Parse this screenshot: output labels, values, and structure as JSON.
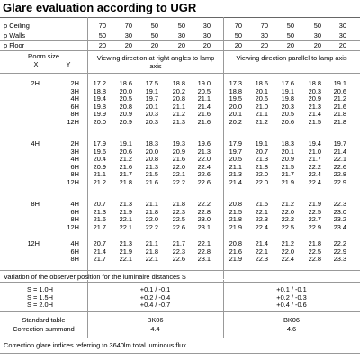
{
  "title": "Glare evaluation according to UGR",
  "reflectances": [
    {
      "label": "ρ Ceiling",
      "values": [
        "70",
        "70",
        "50",
        "50",
        "30",
        "70",
        "70",
        "50",
        "50",
        "30"
      ]
    },
    {
      "label": "ρ Walls",
      "values": [
        "50",
        "30",
        "50",
        "30",
        "30",
        "50",
        "30",
        "50",
        "30",
        "30"
      ]
    },
    {
      "label": "ρ Floor",
      "values": [
        "20",
        "20",
        "20",
        "20",
        "20",
        "20",
        "20",
        "20",
        "20",
        "20"
      ]
    }
  ],
  "room_size_header": {
    "title": "Room size",
    "x": "X",
    "y": "Y"
  },
  "view_right": "Viewing direction at right angles to lamp axis",
  "view_parallel": "Viewing direction parallel to lamp axis",
  "groups": [
    {
      "rows": [
        {
          "x": "2H",
          "y": "2H",
          "v": [
            "17.2",
            "18.6",
            "17.5",
            "18.8",
            "19.0",
            "17.3",
            "18.6",
            "17.6",
            "18.8",
            "19.1"
          ]
        },
        {
          "x": "",
          "y": "3H",
          "v": [
            "18.8",
            "20.0",
            "19.1",
            "20.2",
            "20.5",
            "18.8",
            "20.1",
            "19.1",
            "20.3",
            "20.6"
          ]
        },
        {
          "x": "",
          "y": "4H",
          "v": [
            "19.4",
            "20.5",
            "19.7",
            "20.8",
            "21.1",
            "19.5",
            "20.6",
            "19.8",
            "20.9",
            "21.2"
          ]
        },
        {
          "x": "",
          "y": "6H",
          "v": [
            "19.8",
            "20.8",
            "20.1",
            "21.1",
            "21.4",
            "20.0",
            "21.0",
            "20.3",
            "21.3",
            "21.6"
          ]
        },
        {
          "x": "",
          "y": "8H",
          "v": [
            "19.9",
            "20.9",
            "20.3",
            "21.2",
            "21.6",
            "20.1",
            "21.1",
            "20.5",
            "21.4",
            "21.8"
          ]
        },
        {
          "x": "",
          "y": "12H",
          "v": [
            "20.0",
            "20.9",
            "20.3",
            "21.3",
            "21.6",
            "20.2",
            "21.2",
            "20.6",
            "21.5",
            "21.8"
          ]
        }
      ]
    },
    {
      "rows": [
        {
          "x": "4H",
          "y": "2H",
          "v": [
            "17.9",
            "19.1",
            "18.3",
            "19.3",
            "19.6",
            "17.9",
            "19.1",
            "18.3",
            "19.4",
            "19.7"
          ]
        },
        {
          "x": "",
          "y": "3H",
          "v": [
            "19.6",
            "20.6",
            "20.0",
            "20.9",
            "21.3",
            "19.7",
            "20.7",
            "20.1",
            "21.0",
            "21.4"
          ]
        },
        {
          "x": "",
          "y": "4H",
          "v": [
            "20.4",
            "21.2",
            "20.8",
            "21.6",
            "22.0",
            "20.5",
            "21.3",
            "20.9",
            "21.7",
            "22.1"
          ]
        },
        {
          "x": "",
          "y": "6H",
          "v": [
            "20.9",
            "21.6",
            "21.3",
            "22.0",
            "22.4",
            "21.1",
            "21.8",
            "21.5",
            "22.2",
            "22.6"
          ]
        },
        {
          "x": "",
          "y": "8H",
          "v": [
            "21.1",
            "21.7",
            "21.5",
            "22.1",
            "22.6",
            "21.3",
            "22.0",
            "21.7",
            "22.4",
            "22.8"
          ]
        },
        {
          "x": "",
          "y": "12H",
          "v": [
            "21.2",
            "21.8",
            "21.6",
            "22.2",
            "22.6",
            "21.4",
            "22.0",
            "21.9",
            "22.4",
            "22.9"
          ]
        }
      ]
    },
    {
      "rows": [
        {
          "x": "8H",
          "y": "4H",
          "v": [
            "20.7",
            "21.3",
            "21.1",
            "21.8",
            "22.2",
            "20.8",
            "21.5",
            "21.2",
            "21.9",
            "22.3"
          ]
        },
        {
          "x": "",
          "y": "6H",
          "v": [
            "21.3",
            "21.9",
            "21.8",
            "22.3",
            "22.8",
            "21.5",
            "22.1",
            "22.0",
            "22.5",
            "23.0"
          ]
        },
        {
          "x": "",
          "y": "8H",
          "v": [
            "21.6",
            "22.1",
            "22.0",
            "22.5",
            "23.0",
            "21.8",
            "22.3",
            "22.2",
            "22.7",
            "23.2"
          ]
        },
        {
          "x": "",
          "y": "12H",
          "v": [
            "21.7",
            "22.1",
            "22.2",
            "22.6",
            "23.1",
            "21.9",
            "22.4",
            "22.5",
            "22.9",
            "23.4"
          ]
        }
      ]
    },
    {
      "rows": [
        {
          "x": "12H",
          "y": "4H",
          "v": [
            "20.7",
            "21.3",
            "21.1",
            "21.7",
            "22.1",
            "20.8",
            "21.4",
            "21.2",
            "21.8",
            "22.2"
          ]
        },
        {
          "x": "",
          "y": "6H",
          "v": [
            "21.4",
            "21.9",
            "21.8",
            "22.3",
            "22.8",
            "21.6",
            "22.1",
            "22.0",
            "22.5",
            "22.9"
          ]
        },
        {
          "x": "",
          "y": "8H",
          "v": [
            "21.7",
            "22.1",
            "22.1",
            "22.6",
            "23.1",
            "21.9",
            "22.3",
            "22.4",
            "22.8",
            "23.3"
          ]
        }
      ]
    }
  ],
  "variation_label": "Variation of the observer position for the luminaire distances S",
  "variation": [
    {
      "s": "S = 1.0H",
      "right": "+0.1 / -0.1",
      "parallel": "+0.1 / -0.1"
    },
    {
      "s": "S = 1.5H",
      "right": "+0.2 / -0.4",
      "parallel": "+0.2 / -0.3"
    },
    {
      "s": "S = 2.0H",
      "right": "+0.4 / -0.7",
      "parallel": "+0.4 / -0.6"
    }
  ],
  "standard_table": {
    "label": "Standard table",
    "right": "BK06",
    "parallel": "BK06"
  },
  "correction": {
    "label": "Correction summand",
    "right": "4.4",
    "parallel": "4.6"
  },
  "footer": "Correction glare indices referring to 3640lm total luminous flux"
}
